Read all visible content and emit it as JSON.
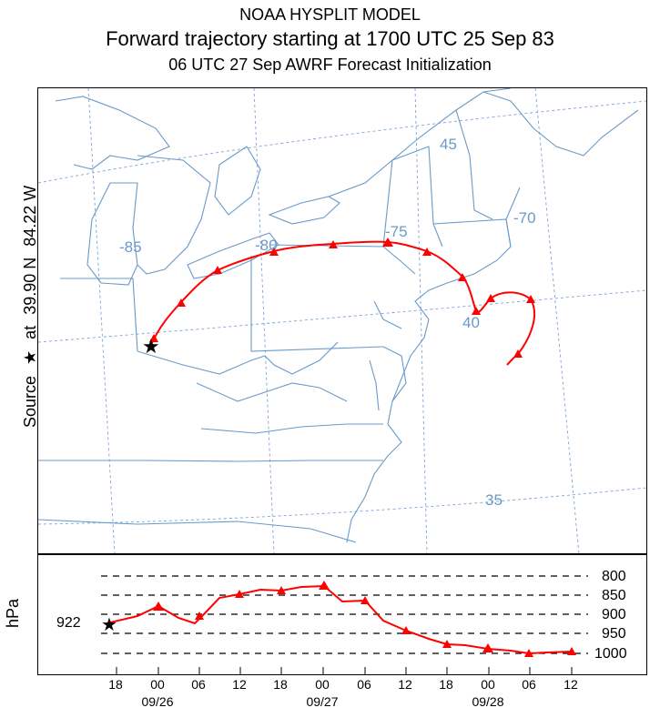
{
  "header": {
    "line1": "NOAA HYSPLIT MODEL",
    "line2": "Forward trajectory starting at 1700 UTC 25 Sep 83",
    "line3": "06 UTC 27 Sep    AWRF  Forecast Initialization"
  },
  "side_label": {
    "source": "Source",
    "star": "★",
    "at": "at",
    "lat": "39.90 N",
    "lon": "84.22 W"
  },
  "map": {
    "grid_labels": [
      "-85",
      "-80",
      "-75",
      "-70",
      "45",
      "40",
      "35"
    ],
    "source_marker": "★"
  },
  "vertical_profile": {
    "y_label": "hPa",
    "start_pressure": "922",
    "pressure_levels": [
      "800",
      "850",
      "900",
      "950",
      "1000"
    ],
    "x_ticks": [
      "18",
      "00",
      "06",
      "12",
      "18",
      "00",
      "06",
      "12",
      "18",
      "00",
      "06",
      "12"
    ],
    "dates": [
      "09/26",
      "09/27",
      "09/28"
    ]
  },
  "colors": {
    "trajectory": "#ff0000",
    "map_lines": "#6a9ac9",
    "grid": "#7aa4d4",
    "frame": "#000000"
  }
}
